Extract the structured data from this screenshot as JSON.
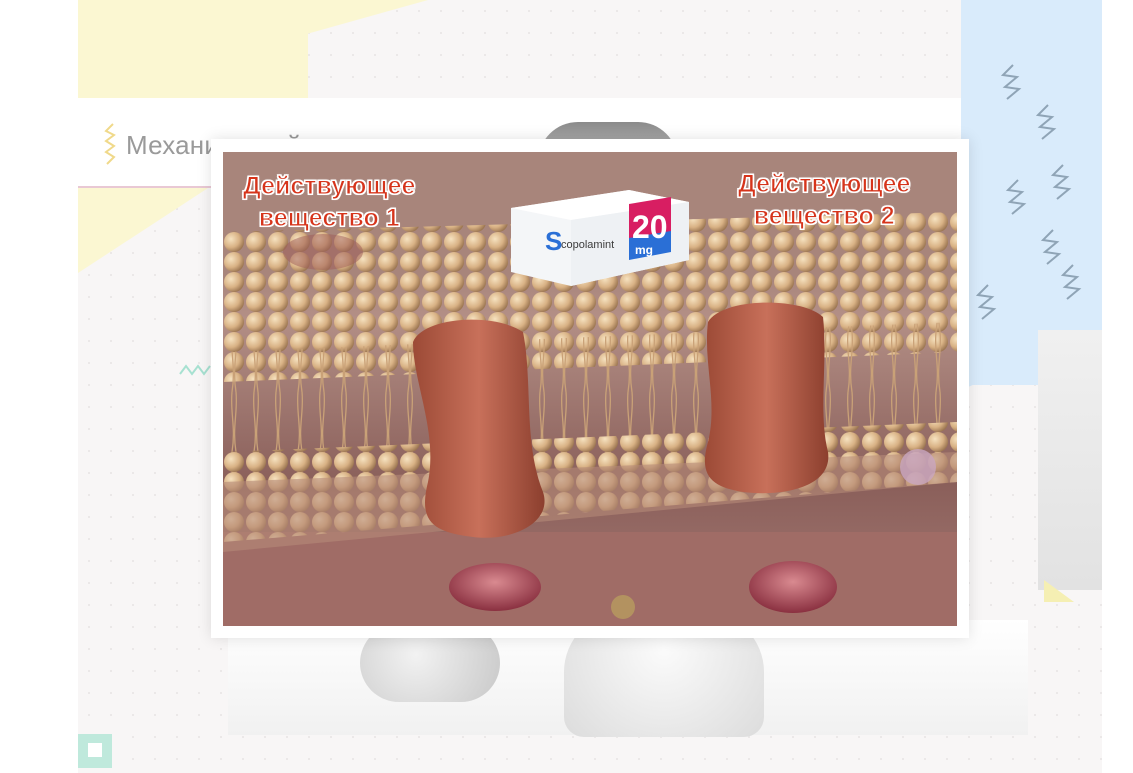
{
  "slide": {
    "title": "Механизм действия препарата"
  },
  "modal": {
    "label_1_line1": "Действующее",
    "label_1_line2": "вещество 1",
    "label_2_line1": "Действующее",
    "label_2_line2": "вещество 2",
    "package": {
      "brand_initial": "S",
      "brand_rest": "copolamint",
      "dose_number": "20",
      "dose_unit": "mg"
    }
  },
  "colors": {
    "label_red": "#d6341b",
    "package_magenta": "#d81e62",
    "package_blue": "#2a6fd6",
    "accent_yellow": "#fbf7d2",
    "accent_blue": "#d9ebfb",
    "accent_mint": "#bfe9dc"
  }
}
